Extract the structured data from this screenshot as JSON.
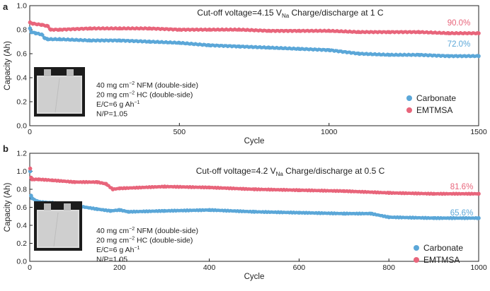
{
  "colors": {
    "carbonate": "#5ba7d8",
    "emtmsa": "#e8657b",
    "axis": "#222222"
  },
  "chart_data": [
    {
      "panel_label": "a",
      "type": "scatter",
      "title_parts": [
        "Cut-off voltage=4.15 V",
        "Na",
        "  Charge/discharge at 1 C"
      ],
      "xlabel": "Cycle",
      "ylabel": "Capacity (Ah)",
      "xlim": [
        0,
        1500
      ],
      "ylim": [
        0.0,
        1.0
      ],
      "x_ticks": [
        "0",
        "500",
        "1000",
        "1500"
      ],
      "y_ticks": [
        "0.0",
        "0.2",
        "0.4",
        "0.6",
        "0.8",
        "1.0"
      ],
      "annotations": {
        "emtmsa_end": "90.0%",
        "carbonate_end": "72.0%"
      },
      "inset_text": [
        {
          "main": "40 mg cm",
          "sup": "−2",
          "rest": " NFM (double-side)"
        },
        {
          "main": "20 mg cm",
          "sup": "−2",
          "rest": " HC (double-side)"
        },
        {
          "main": "E/C=6 g Ah",
          "sup": "−1",
          "rest": ""
        },
        {
          "main": "N/P=1.05",
          "sup": "",
          "rest": ""
        }
      ],
      "legend_position": "bottom-right",
      "series": [
        {
          "name": "Carbonate",
          "color": "#5ba7d8",
          "x": [
            1,
            5,
            20,
            40,
            50,
            60,
            100,
            200,
            300,
            400,
            500,
            600,
            700,
            800,
            900,
            1000,
            1100,
            1200,
            1300,
            1400,
            1500
          ],
          "y": [
            0.81,
            0.78,
            0.77,
            0.76,
            0.73,
            0.72,
            0.72,
            0.71,
            0.71,
            0.7,
            0.69,
            0.67,
            0.66,
            0.65,
            0.64,
            0.63,
            0.6,
            0.59,
            0.59,
            0.58,
            0.58
          ]
        },
        {
          "name": "EMTMSA",
          "color": "#e8657b",
          "x": [
            1,
            10,
            40,
            60,
            70,
            100,
            200,
            300,
            400,
            500,
            600,
            700,
            800,
            900,
            1000,
            1100,
            1200,
            1300,
            1400,
            1500
          ],
          "y": [
            0.86,
            0.85,
            0.84,
            0.83,
            0.8,
            0.8,
            0.81,
            0.81,
            0.81,
            0.8,
            0.8,
            0.8,
            0.79,
            0.79,
            0.79,
            0.78,
            0.78,
            0.78,
            0.77,
            0.77
          ]
        }
      ]
    },
    {
      "panel_label": "b",
      "type": "scatter",
      "title_parts": [
        "Cut-off voltage=4.2 V",
        "Na",
        "  Charge/discharge at 0.5 C"
      ],
      "xlabel": "Cycle",
      "ylabel": "Capacity (Ah)",
      "xlim": [
        0,
        1000
      ],
      "ylim": [
        0.0,
        1.2
      ],
      "x_ticks": [
        "0",
        "200",
        "400",
        "600",
        "800",
        "1000"
      ],
      "y_ticks": [
        "0.0",
        "0.2",
        "0.4",
        "0.6",
        "0.8",
        "1.0",
        "1.2"
      ],
      "annotations": {
        "emtmsa_end": "81.6%",
        "carbonate_end": "65.6%"
      },
      "inset_text": [
        {
          "main": "40 mg cm",
          "sup": "−2",
          "rest": " NFM (double-side)"
        },
        {
          "main": "20 mg cm",
          "sup": "−2",
          "rest": " HC (double-side)"
        },
        {
          "main": "E/C=6 g Ah",
          "sup": "−1",
          "rest": ""
        },
        {
          "main": "N/P=1.05",
          "sup": "",
          "rest": ""
        }
      ],
      "legend_position": "bottom-right",
      "series": [
        {
          "name": "Carbonate",
          "color": "#5ba7d8",
          "x": [
            1,
            3,
            5,
            20,
            50,
            100,
            150,
            180,
            200,
            220,
            300,
            400,
            500,
            600,
            700,
            760,
            800,
            900,
            1000
          ],
          "y": [
            1.0,
            0.73,
            0.7,
            0.66,
            0.65,
            0.62,
            0.58,
            0.56,
            0.57,
            0.55,
            0.56,
            0.57,
            0.55,
            0.54,
            0.53,
            0.53,
            0.49,
            0.48,
            0.48
          ]
        },
        {
          "name": "EMTMSA",
          "color": "#e8657b",
          "x": [
            1,
            3,
            5,
            20,
            50,
            100,
            150,
            170,
            185,
            200,
            300,
            400,
            500,
            600,
            700,
            800,
            900,
            1000
          ],
          "y": [
            1.03,
            0.93,
            0.91,
            0.91,
            0.9,
            0.88,
            0.88,
            0.86,
            0.8,
            0.81,
            0.83,
            0.82,
            0.8,
            0.79,
            0.78,
            0.76,
            0.75,
            0.75
          ]
        }
      ]
    }
  ]
}
